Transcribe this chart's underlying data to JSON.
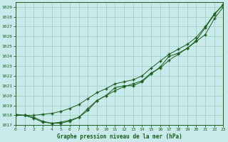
{
  "xlabel": "Graphe pression niveau de la mer (hPa)",
  "ylim": [
    1017,
    1029.5
  ],
  "xlim": [
    0,
    23
  ],
  "yticks": [
    1017,
    1018,
    1019,
    1020,
    1021,
    1022,
    1023,
    1024,
    1025,
    1026,
    1027,
    1028,
    1029
  ],
  "xticks": [
    0,
    1,
    2,
    3,
    4,
    5,
    6,
    7,
    8,
    9,
    10,
    11,
    12,
    13,
    14,
    15,
    16,
    17,
    18,
    19,
    20,
    21,
    22,
    23
  ],
  "bg_color": "#c8eaea",
  "grid_color": "#99ccbb",
  "line_color": "#1a5c1a",
  "series": [
    [
      1018.1,
      1018.0,
      1017.8,
      1017.4,
      1017.2,
      1017.3,
      1017.5,
      1017.8,
      1018.5,
      1019.5,
      1020.0,
      1020.5,
      1020.9,
      1021.2,
      1021.5,
      1022.3,
      1022.8,
      1023.6,
      1024.2,
      1024.8,
      1025.5,
      1026.2,
      1027.8,
      1029.0
    ],
    [
      1018.0,
      1018.0,
      1017.7,
      1017.3,
      1017.2,
      1017.2,
      1017.4,
      1017.8,
      1018.7,
      1019.5,
      1020.0,
      1020.8,
      1021.0,
      1021.0,
      1021.4,
      1022.2,
      1022.9,
      1024.0,
      1024.3,
      1024.8,
      1025.6,
      1026.9,
      1028.2,
      1029.3
    ],
    [
      1018.0,
      1018.0,
      1018.0,
      1018.1,
      1018.2,
      1018.4,
      1018.7,
      1019.1,
      1019.7,
      1020.3,
      1020.7,
      1021.2,
      1021.4,
      1021.6,
      1022.0,
      1022.8,
      1023.5,
      1024.2,
      1024.7,
      1025.2,
      1025.9,
      1027.0,
      1028.3,
      1029.2
    ]
  ],
  "figwidth": 3.2,
  "figheight": 2.0,
  "dpi": 100
}
